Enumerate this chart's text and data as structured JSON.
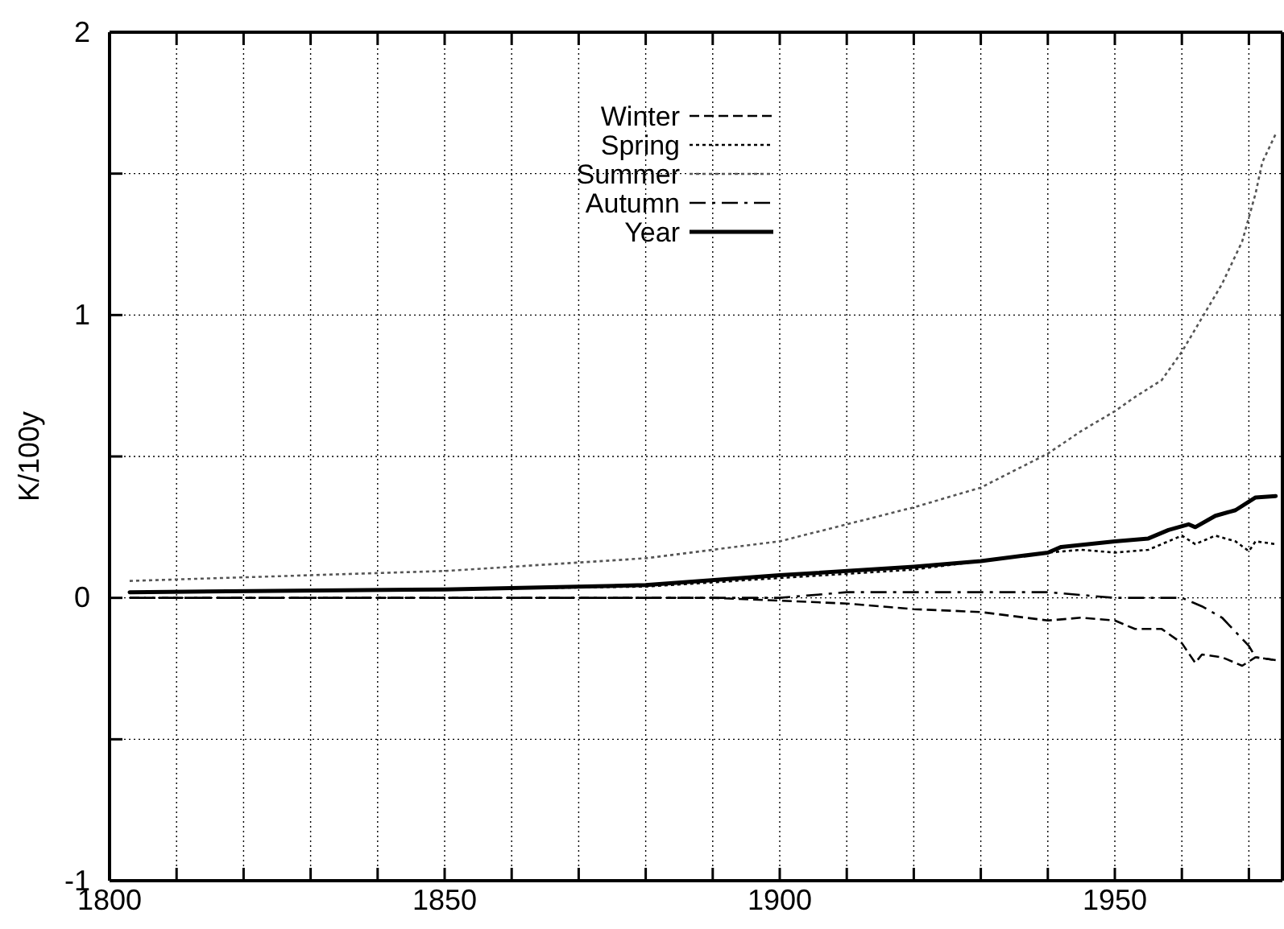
{
  "chart_data": {
    "type": "line",
    "ylabel": "K/100y",
    "xlim": [
      1800,
      1975
    ],
    "ylim": [
      -1,
      2
    ],
    "xticks": [
      1800,
      {
        "value": 1810,
        "label": null
      },
      {
        "value": 1820,
        "label": null
      },
      {
        "value": 1830,
        "label": null
      },
      {
        "value": 1840,
        "label": null
      },
      1850,
      {
        "value": 1860,
        "label": null
      },
      {
        "value": 1870,
        "label": null
      },
      {
        "value": 1880,
        "label": null
      },
      {
        "value": 1890,
        "label": null
      },
      1900,
      {
        "value": 1910,
        "label": null
      },
      {
        "value": 1920,
        "label": null
      },
      {
        "value": 1930,
        "label": null
      },
      {
        "value": 1940,
        "label": null
      },
      1950,
      {
        "value": 1960,
        "label": null
      },
      {
        "value": 1970,
        "label": null
      }
    ],
    "yticks": [
      -1,
      {
        "value": -0.5,
        "label": null
      },
      0,
      {
        "value": 0.5,
        "label": null
      },
      1,
      {
        "value": 1.5,
        "label": null
      },
      2
    ],
    "grid": true,
    "legend": "top",
    "series": [
      {
        "name": "Winter",
        "color": "#000000",
        "line_style": "dashed",
        "x": [
          1803,
          1850,
          1880,
          1890,
          1900,
          1910,
          1920,
          1930,
          1940,
          1945,
          1950,
          1953,
          1957,
          1960,
          1962,
          1963,
          1966,
          1969,
          1971,
          1974
        ],
        "values": [
          0,
          0,
          0,
          0,
          -0.01,
          -0.02,
          -0.04,
          -0.05,
          -0.08,
          -0.07,
          -0.08,
          -0.11,
          -0.11,
          -0.16,
          -0.23,
          -0.2,
          -0.21,
          -0.24,
          -0.21,
          -0.22
        ]
      },
      {
        "name": "Spring",
        "color": "#000000",
        "line_style": "dotted",
        "x": [
          1803,
          1850,
          1880,
          1900,
          1920,
          1940,
          1945,
          1950,
          1955,
          1960,
          1962,
          1965,
          1968,
          1970,
          1971,
          1974
        ],
        "values": [
          0.02,
          0.03,
          0.04,
          0.07,
          0.1,
          0.16,
          0.17,
          0.16,
          0.17,
          0.22,
          0.19,
          0.22,
          0.2,
          0.165,
          0.2,
          0.19
        ]
      },
      {
        "name": "Summer",
        "color": "#555555",
        "line_style": "dotted",
        "x": [
          1803,
          1850,
          1880,
          1900,
          1910,
          1920,
          1930,
          1940,
          1945,
          1950,
          1953,
          1957,
          1960,
          1963,
          1966,
          1969,
          1971,
          1972,
          1974
        ],
        "values": [
          0.06,
          0.095,
          0.14,
          0.2,
          0.26,
          0.32,
          0.39,
          0.51,
          0.59,
          0.66,
          0.71,
          0.77,
          0.87,
          0.99,
          1.11,
          1.26,
          1.43,
          1.54,
          1.64
        ]
      },
      {
        "name": "Autumn",
        "color": "#000000",
        "line_style": "dashdot",
        "x": [
          1803,
          1850,
          1900,
          1910,
          1930,
          1940,
          1945,
          1950,
          1955,
          1960,
          1963,
          1966,
          1968,
          1970,
          1971,
          1974
        ],
        "values": [
          0,
          0,
          0,
          0.02,
          0.02,
          0.02,
          0.01,
          0,
          0,
          0,
          -0.03,
          -0.07,
          -0.12,
          -0.17,
          -0.21,
          -0.22
        ]
      },
      {
        "name": "Year",
        "color": "#000000",
        "line_style": "solid",
        "x": [
          1803,
          1850,
          1880,
          1900,
          1920,
          1930,
          1940,
          1942,
          1950,
          1955,
          1958,
          1961,
          1962,
          1965,
          1968,
          1971,
          1974
        ],
        "values": [
          0.02,
          0.03,
          0.045,
          0.08,
          0.11,
          0.13,
          0.16,
          0.18,
          0.2,
          0.21,
          0.24,
          0.26,
          0.25,
          0.29,
          0.31,
          0.355,
          0.36
        ]
      }
    ]
  }
}
